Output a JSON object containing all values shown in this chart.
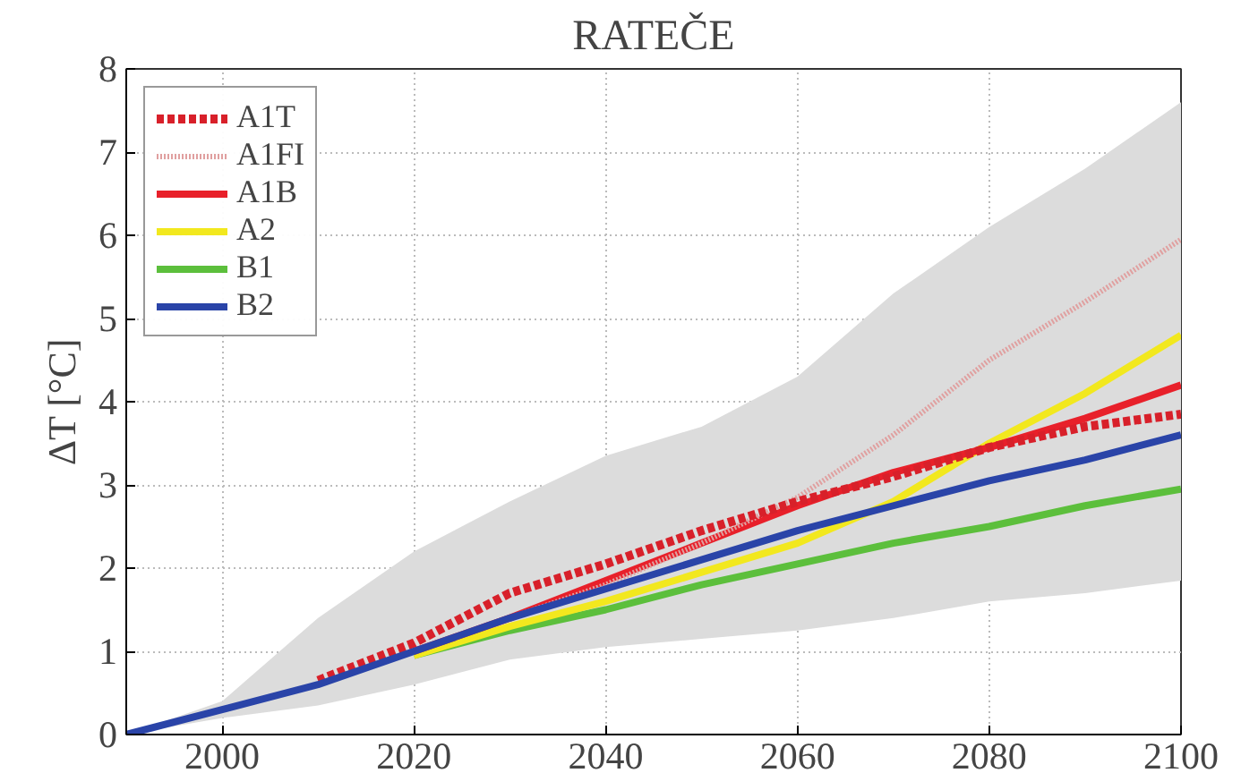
{
  "chart_data": {
    "type": "line",
    "title": "RATEČE",
    "ylabel": "ΔT [°C]",
    "x": [
      1990,
      2000,
      2010,
      2020,
      2030,
      2040,
      2050,
      2060,
      2070,
      2080,
      2090,
      2100
    ],
    "xlim": [
      1990,
      2100
    ],
    "xticks": [
      2000,
      2020,
      2040,
      2060,
      2080,
      2100
    ],
    "ylim": [
      0,
      8
    ],
    "yticks": [
      0,
      1,
      2,
      3,
      4,
      5,
      6,
      7,
      8
    ],
    "grid": true,
    "legend": "top left",
    "series": [
      {
        "name": "A1T",
        "color": "#d8202a",
        "line_style": "dashed",
        "values": [
          null,
          null,
          0.65,
          1.1,
          1.7,
          2.05,
          2.45,
          2.8,
          3.1,
          3.45,
          3.7,
          3.85
        ]
      },
      {
        "name": "A1FI",
        "color": "#e0a0a0",
        "line_style": "dotted",
        "values": [
          null,
          null,
          null,
          1.0,
          1.4,
          1.8,
          2.3,
          2.85,
          3.6,
          4.5,
          5.2,
          5.95
        ]
      },
      {
        "name": "A1B",
        "color": "#e8202a",
        "line_style": "solid",
        "values": [
          null,
          null,
          null,
          1.0,
          1.4,
          1.85,
          2.3,
          2.75,
          3.15,
          3.45,
          3.8,
          4.2
        ],
        "lower": [
          0,
          0.2,
          0.35,
          0.6,
          0.9,
          1.05,
          1.15,
          1.25,
          1.4,
          1.6,
          1.7,
          1.85
        ],
        "upper": [
          0,
          0.4,
          1.4,
          2.2,
          2.8,
          3.35,
          3.7,
          4.3,
          5.3,
          6.1,
          6.8,
          7.6
        ]
      },
      {
        "name": "A2",
        "color": "#f2e81e",
        "line_style": "solid",
        "values": [
          null,
          null,
          null,
          0.95,
          1.3,
          1.6,
          1.95,
          2.3,
          2.8,
          3.5,
          4.1,
          4.8
        ]
      },
      {
        "name": "B1",
        "color": "#5cbf3c",
        "line_style": "solid",
        "values": [
          null,
          null,
          null,
          0.95,
          1.25,
          1.5,
          1.8,
          2.05,
          2.3,
          2.5,
          2.75,
          2.95
        ]
      },
      {
        "name": "B2",
        "color": "#2a44a8",
        "line_style": "solid",
        "values": [
          0,
          0.3,
          0.6,
          1.0,
          1.4,
          1.75,
          2.1,
          2.45,
          2.75,
          3.05,
          3.3,
          3.6
        ]
      }
    ]
  }
}
